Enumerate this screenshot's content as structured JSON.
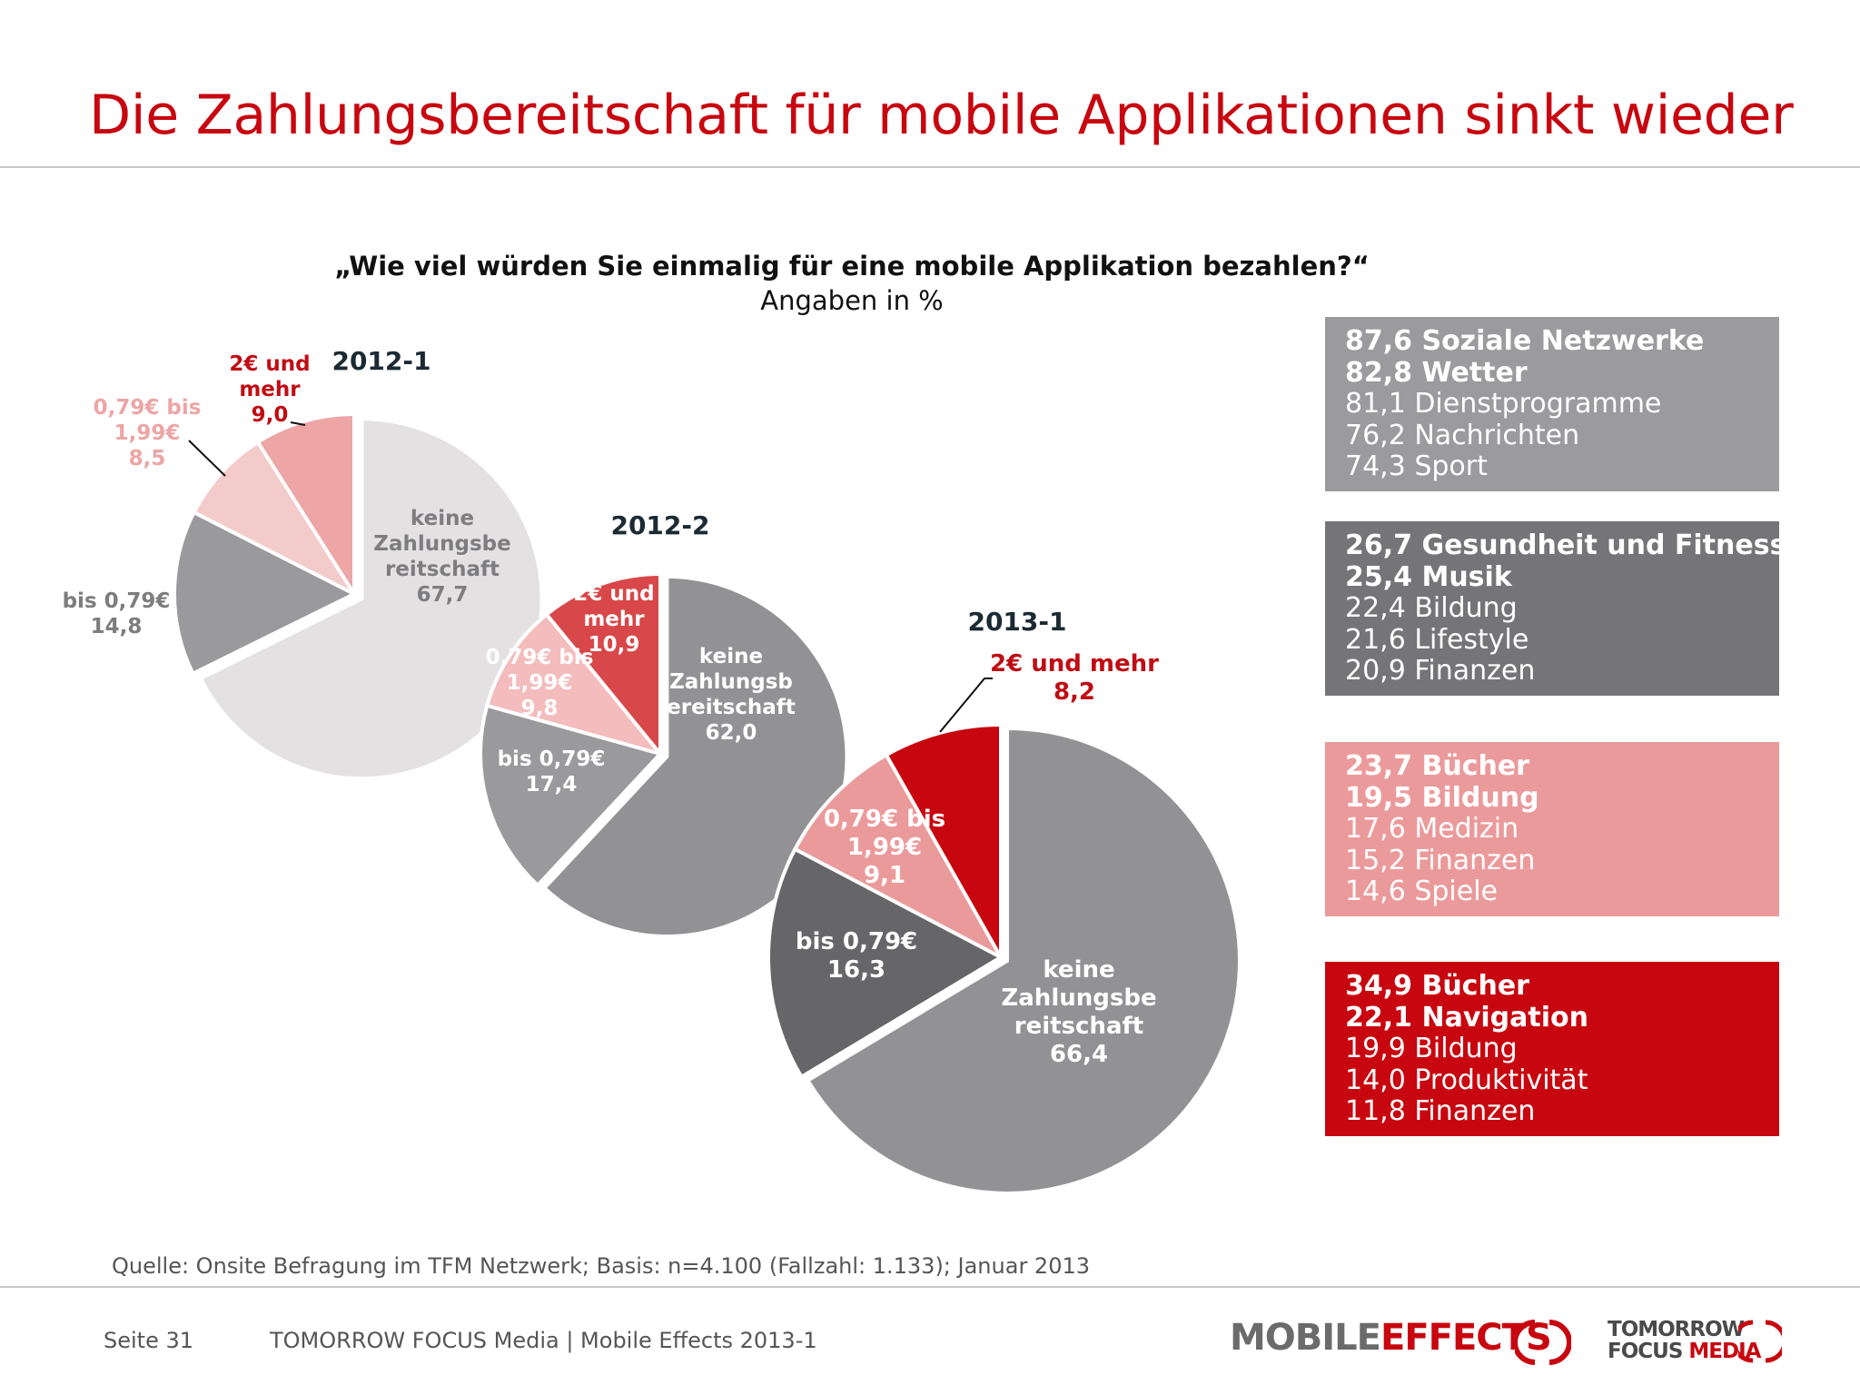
{
  "title": "Die Zahlungsbereitschaft für mobile Applikationen sinkt wieder",
  "question": "„Wie viel würden Sie einmalig für eine mobile Applikation bezahlen?“",
  "subtitle": "Angaben in %",
  "chart_data": [
    {
      "type": "pie",
      "title": "2012-1",
      "slices": [
        {
          "label": "keine Zahlungsbereitschaft",
          "label_lines": [
            "keine",
            "Zahlungsbe",
            "reitschaft"
          ],
          "value": 67.7,
          "value_text": "67,7",
          "color": "#e3e1e2"
        },
        {
          "label": "bis 0,79€",
          "label_lines": [
            "bis 0,79€"
          ],
          "value": 14.8,
          "value_text": "14,8",
          "color": "#9a999b"
        },
        {
          "label": "0,79€ bis 1,99€",
          "label_lines": [
            "0,79€ bis",
            "1,99€"
          ],
          "value": 8.5,
          "value_text": "8,5",
          "color": "#f4cbcb"
        },
        {
          "label": "2€ und mehr",
          "label_lines": [
            "2€ und",
            "mehr"
          ],
          "value": 9.0,
          "value_text": "9,0",
          "color": "#eda5a5"
        }
      ]
    },
    {
      "type": "pie",
      "title": "2012-2",
      "slices": [
        {
          "label": "keine Zahlungsbereitschaft",
          "label_lines": [
            "keine",
            "Zahlungsb",
            "ereitschaft"
          ],
          "value": 62.0,
          "value_text": "62,0",
          "color": "#929194"
        },
        {
          "label": "bis 0,79€",
          "label_lines": [
            "bis 0,79€"
          ],
          "value": 17.4,
          "value_text": "17,4",
          "color": "#9a999b"
        },
        {
          "label": "0,79€ bis 1,99€",
          "label_lines": [
            "0,79€ bis",
            "1,99€"
          ],
          "value": 9.8,
          "value_text": "9,8",
          "color": "#f4bcbc"
        },
        {
          "label": "2€ und mehr",
          "label_lines": [
            "2€ und",
            "mehr"
          ],
          "value": 10.9,
          "value_text": "10,9",
          "color": "#d8474a"
        }
      ]
    },
    {
      "type": "pie",
      "title": "2013-1",
      "slices": [
        {
          "label": "keine Zahlungsbereitschaft",
          "label_lines": [
            "keine",
            "Zahlungsbe",
            "reitschaft"
          ],
          "value": 66.4,
          "value_text": "66,4",
          "color": "#929194"
        },
        {
          "label": "bis 0,79€",
          "label_lines": [
            "bis 0,79€"
          ],
          "value": 16.3,
          "value_text": "16,3",
          "color": "#666568"
        },
        {
          "label": "0,79€ bis 1,99€",
          "label_lines": [
            "0,79€ bis",
            "1,99€"
          ],
          "value": 9.1,
          "value_text": "9,1",
          "color": "#eb9a9b"
        },
        {
          "label": "2€ und mehr",
          "label_lines": [
            "2€ und mehr"
          ],
          "value": 8.2,
          "value_text": "8,2",
          "color": "#c8060f"
        }
      ]
    }
  ],
  "boxes": [
    {
      "color": "#9b9a9c",
      "text_color": "#ffffff",
      "lines": [
        {
          "text": "87,6 Soziale Netzwerke",
          "bold": true
        },
        {
          "text": "82,8 Wetter",
          "bold": true
        },
        {
          "text": "81,1 Dienstprogramme",
          "bold": false
        },
        {
          "text": "76,2 Nachrichten",
          "bold": false
        },
        {
          "text": "74,3 Sport",
          "bold": false
        }
      ]
    },
    {
      "color": "#757476",
      "text_color": "#ffffff",
      "lines": [
        {
          "text": "26,7 Gesundheit und Fitness",
          "bold": true
        },
        {
          "text": "25,4 Musik",
          "bold": true
        },
        {
          "text": "22,4 Bildung",
          "bold": false
        },
        {
          "text": "21,6 Lifestyle",
          "bold": false
        },
        {
          "text": "20,9 Finanzen",
          "bold": false
        }
      ]
    },
    {
      "color": "#eb9a9b",
      "text_color": "#ffffff",
      "lines": [
        {
          "text": "23,7 Bücher",
          "bold": true
        },
        {
          "text": "19,5 Bildung",
          "bold": true
        },
        {
          "text": "17,6 Medizin",
          "bold": false
        },
        {
          "text": "15,2 Finanzen",
          "bold": false
        },
        {
          "text": "14,6 Spiele",
          "bold": false
        }
      ]
    },
    {
      "color": "#c8060f",
      "text_color": "#ffffff",
      "lines": [
        {
          "text": "34,9 Bücher",
          "bold": true
        },
        {
          "text": "22,1 Navigation",
          "bold": true
        },
        {
          "text": "19,9 Bildung",
          "bold": false
        },
        {
          "text": "14,0 Produktivität",
          "bold": false
        },
        {
          "text": "11,8 Finanzen",
          "bold": false
        }
      ]
    }
  ],
  "source": "Quelle: Onsite Befragung im TFM Netzwerk; Basis: n=4.100 (Fallzahl: 1.133); Januar 2013",
  "footer": {
    "page": "Seite 31",
    "company": "TOMORROW FOCUS Media  |  Mobile Effects 2013-1"
  },
  "logos": {
    "mobile": "MOBILE",
    "effects": "EFFECTS",
    "tomorrow": "TOMORROW",
    "focus": "FOCUS",
    "media": "MEDIA"
  }
}
